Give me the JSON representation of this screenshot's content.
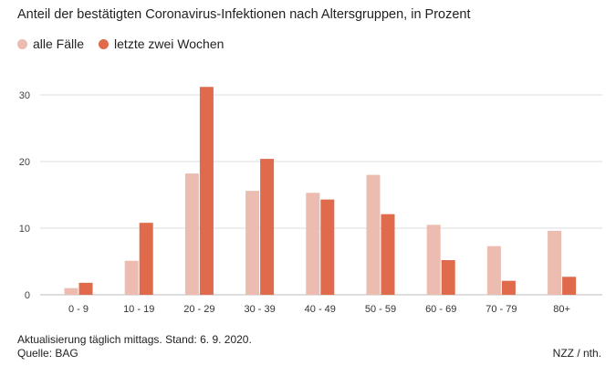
{
  "chart_data": {
    "type": "bar",
    "title": "Anteil der bestätigten Coronavirus-Infektionen nach Altersgruppen, in Prozent",
    "categories": [
      "0 - 9",
      "10 - 19",
      "20 - 29",
      "30 - 39",
      "40 - 49",
      "50 - 59",
      "60 - 69",
      "70 - 79",
      "80+"
    ],
    "series": [
      {
        "name": "alle Fälle",
        "color": "#ecbcb0",
        "values": [
          1.0,
          5.1,
          18.2,
          15.6,
          15.3,
          18.0,
          10.5,
          7.3,
          9.6
        ]
      },
      {
        "name": "letzte zwei Wochen",
        "color": "#e06a4c",
        "values": [
          1.8,
          10.8,
          31.2,
          20.4,
          14.3,
          12.1,
          5.2,
          2.1,
          2.7
        ]
      }
    ],
    "xlabel": "",
    "ylabel": "",
    "ylim": [
      0,
      30
    ],
    "yticks": [
      0,
      10,
      20,
      30
    ],
    "grid": true,
    "legend_position": "top-left"
  },
  "footer": {
    "note": "Aktualisierung täglich mittags. Stand: 6. 9. 2020.",
    "source": "Quelle: BAG",
    "credit": "NZZ / nth."
  }
}
